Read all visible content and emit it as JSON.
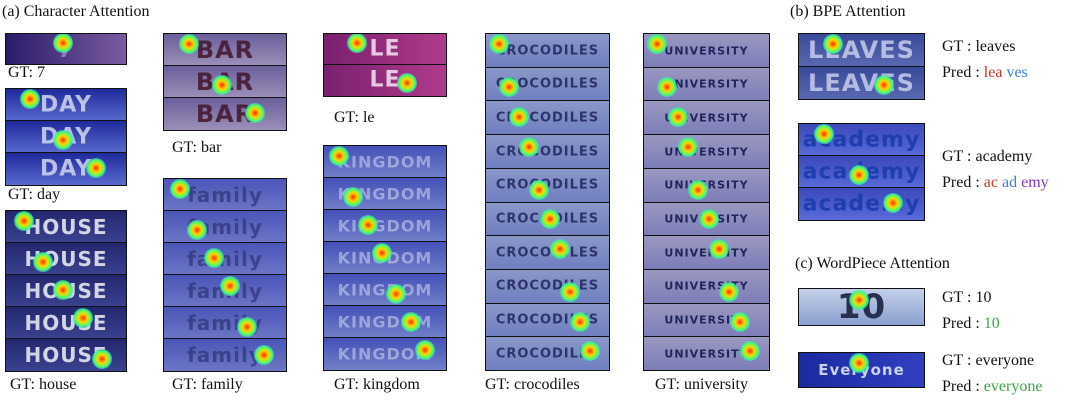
{
  "character_attention": {
    "title": "(a) Character Attention",
    "items": [
      {
        "image_text": "7",
        "caption": "GT: 7"
      },
      {
        "image_text": "DAY",
        "caption": "GT: day"
      },
      {
        "image_text": "HOUSE",
        "caption": "GT: house"
      },
      {
        "image_text": "BAR",
        "caption": "GT: bar"
      },
      {
        "image_text": "family",
        "caption": "GT: family"
      },
      {
        "image_text": "LE",
        "caption": "GT: le"
      },
      {
        "image_text": "KINGDOM",
        "caption": "GT: kingdom"
      },
      {
        "image_text": "CROCODILES",
        "caption": "GT: crocodiles"
      },
      {
        "image_text": "UNIVERSITY",
        "caption": "GT: university"
      }
    ]
  },
  "bpe_attention": {
    "title": "(b) BPE Attention",
    "items": [
      {
        "image_text": "LEAVES",
        "gt": "GT : leaves",
        "pred_label": "Pred :",
        "pred_pieces": [
          {
            "text": "lea",
            "color": "#c0392b"
          },
          {
            "text": "ves",
            "color": "#3b7fd4"
          }
        ]
      },
      {
        "image_text": "academy",
        "gt": "GT : academy",
        "pred_label": "Pred :",
        "pred_pieces": [
          {
            "text": "ac",
            "color": "#c0392b"
          },
          {
            "text": "ad",
            "color": "#3b7fd4"
          },
          {
            "text": "emy",
            "color": "#7d3cb5"
          }
        ]
      }
    ]
  },
  "wordpiece_attention": {
    "title": "(c) WordPiece Attention",
    "items": [
      {
        "image_text": "10",
        "gt": "GT : 10",
        "pred_label": "Pred :",
        "pred_pieces": [
          {
            "text": "10",
            "color": "#3aa845"
          }
        ]
      },
      {
        "image_text": "Everyone",
        "gt": "GT : everyone",
        "pred_label": "Pred :",
        "pred_pieces": [
          {
            "text": "everyone",
            "color": "#3aa845"
          }
        ]
      }
    ]
  }
}
